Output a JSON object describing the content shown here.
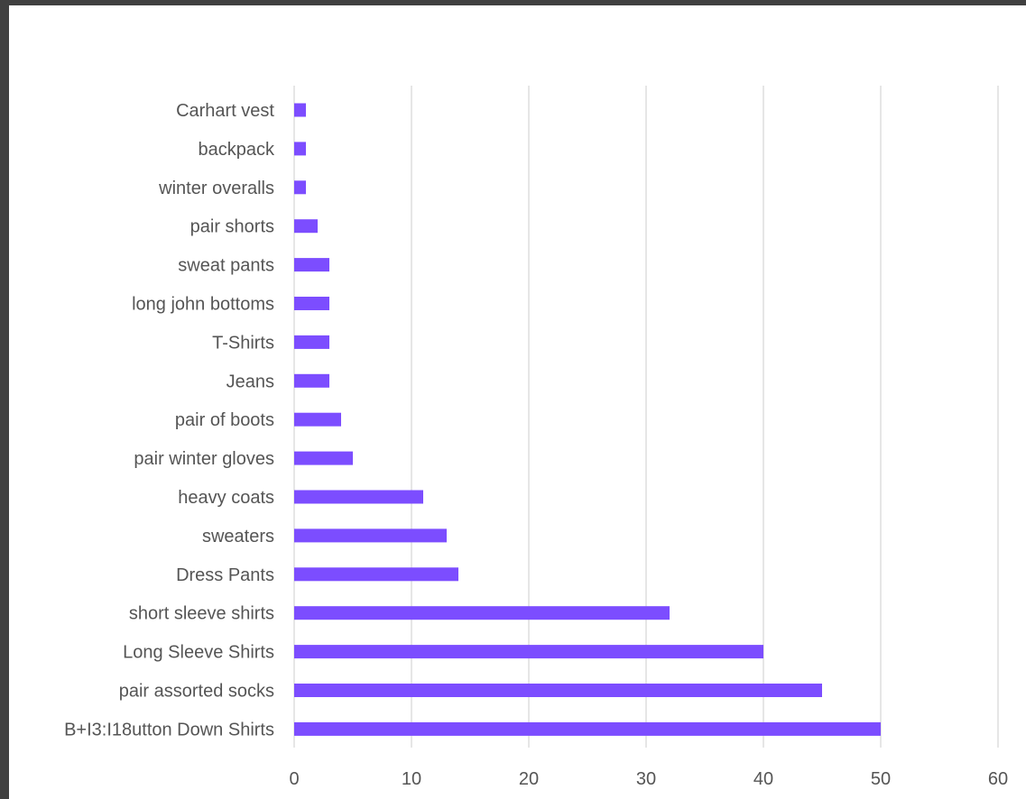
{
  "chart_data": {
    "type": "bar",
    "orientation": "horizontal",
    "title": "",
    "xlabel": "",
    "ylabel": "",
    "categories": [
      "Carhart vest",
      "backpack",
      "winter overalls",
      "pair shorts",
      "sweat pants",
      "long john bottoms",
      "T-Shirts",
      "Jeans",
      "pair of boots",
      "pair winter gloves",
      "heavy coats",
      "sweaters",
      "Dress Pants",
      "short sleeve shirts",
      "Long Sleeve Shirts",
      "pair assorted socks",
      "B+I3:I18utton Down Shirts"
    ],
    "values": [
      1,
      1,
      1,
      2,
      3,
      3,
      3,
      3,
      4,
      5,
      11,
      13,
      14,
      32,
      40,
      45,
      50
    ],
    "xlim": [
      0,
      60
    ],
    "xticks": [
      "0",
      "10",
      "20",
      "30",
      "40",
      "50",
      "60"
    ],
    "grid": true,
    "legend": "none",
    "bar_color": "#7c4dff"
  }
}
